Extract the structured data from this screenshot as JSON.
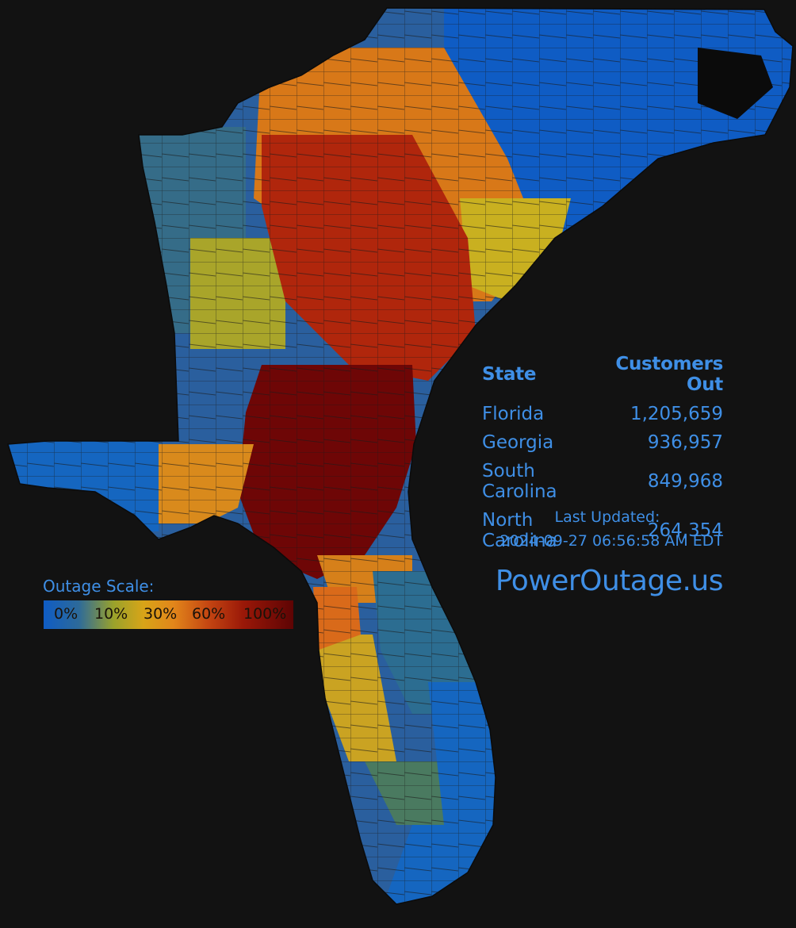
{
  "table": {
    "header": {
      "state": "State",
      "customers": "Customers Out"
    },
    "rows": [
      {
        "state": "Florida",
        "customers": "1,205,659"
      },
      {
        "state": "Georgia",
        "customers": "936,957"
      },
      {
        "state": "South Carolina",
        "customers": "849,968"
      },
      {
        "state": "North Carolina",
        "customers": "264,354"
      }
    ]
  },
  "updated": {
    "label": "Last Updated:",
    "time": "2024-09-27 06:56:58 AM EDT"
  },
  "brand": "PowerOutage.us",
  "scale": {
    "title": "Outage Scale:",
    "labels": [
      "0%",
      "10%",
      "30%",
      "60%",
      "100%"
    ]
  },
  "colors": {
    "background": "#121212",
    "text_accent": "#3f8fe6",
    "scale": [
      "#0f5cc4",
      "#2d6a9a",
      "#9aa22b",
      "#d8a418",
      "#e2861a",
      "#c44612",
      "#9a1808",
      "#5e0404"
    ]
  }
}
